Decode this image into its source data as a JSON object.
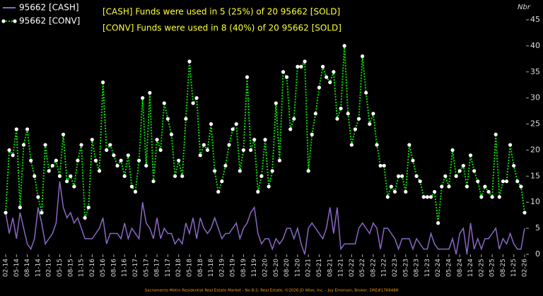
{
  "chart_data": {
    "type": "line",
    "ylabel": "Nbr",
    "annotations": [
      "[CASH] Funds were used in 5 (25%) of 20 95662 [SOLD]",
      "[CONV] Funds were used in 8 (40%) of 20 95662 [SOLD]"
    ],
    "footer": "Sacramento Metro Residential Real Estate Market - No B.S. Real Estate, ©2026 JD Wise, Inc. - Joy Emerson, Broker, DRE#1768488",
    "ylim": [
      0,
      45
    ],
    "yticks": [
      0,
      5,
      10,
      15,
      20,
      25,
      30,
      35,
      40,
      45
    ],
    "categories": [
      "02-14",
      null,
      null,
      "05-14",
      null,
      null,
      "08-14",
      null,
      null,
      "11-14",
      null,
      null,
      "02-15",
      null,
      null,
      "05-15",
      null,
      null,
      "08-15",
      null,
      null,
      "11-15",
      null,
      null,
      "02-16",
      null,
      null,
      "05-16",
      null,
      null,
      "08-16",
      null,
      null,
      "11-16",
      null,
      null,
      "02-17",
      null,
      null,
      "05-17",
      null,
      null,
      "08-17",
      null,
      null,
      "11-17",
      null,
      null,
      "02-18",
      null,
      null,
      "05-18",
      null,
      null,
      "08-18",
      null,
      null,
      "11-18",
      null,
      null,
      "02-19",
      null,
      null,
      "05-19",
      null,
      null,
      "08-19",
      null,
      null,
      "11-19",
      null,
      null,
      "02-20",
      null,
      null,
      "05-20",
      null,
      null,
      "08-20",
      null,
      null,
      "11-20",
      null,
      null,
      "02-21",
      null,
      null,
      "05-21",
      null,
      null,
      "08-21",
      null,
      null,
      "11-21",
      null,
      null,
      "02-22",
      null,
      null,
      "05-22",
      null,
      null,
      "08-22",
      null,
      null,
      "11-22",
      null,
      null,
      "02-23",
      null,
      null,
      "05-23",
      null,
      null,
      "08-23",
      null,
      null,
      "11-23",
      null,
      null,
      "02-24",
      null,
      null,
      "05-24",
      null,
      null,
      "08-24",
      null,
      null,
      "11-24",
      null,
      null,
      "02-25",
      null,
      null,
      "05-25",
      null,
      null,
      "08-25",
      null,
      null,
      "11-25",
      null,
      null,
      "02-26"
    ],
    "series": [
      {
        "name": "95662 [CASH]",
        "color": "#8a68c4",
        "line_style": "solid",
        "values": [
          8,
          4,
          7,
          3,
          8,
          5,
          2,
          1,
          3,
          9,
          6,
          2,
          3,
          4,
          6,
          14,
          9,
          7,
          8,
          6,
          7,
          5,
          3,
          3,
          3,
          4,
          5,
          7,
          2,
          4,
          4,
          4,
          3,
          6,
          3,
          5,
          4,
          3,
          10,
          6,
          5,
          3,
          7,
          3,
          5,
          4,
          4,
          2,
          3,
          2,
          6,
          4,
          7,
          3,
          7,
          5,
          4,
          5,
          7,
          5,
          3,
          4,
          4,
          5,
          6,
          3,
          5,
          6,
          8,
          9,
          4,
          2,
          3,
          3,
          1,
          3,
          2,
          3,
          5,
          5,
          3,
          5,
          2,
          0,
          5,
          6,
          5,
          4,
          3,
          5,
          9,
          4,
          9,
          1,
          2,
          2,
          2,
          2,
          5,
          6,
          5,
          4,
          6,
          5,
          1,
          5,
          5,
          4,
          3,
          1,
          3,
          3,
          3,
          1,
          3,
          2,
          1,
          1,
          4,
          2,
          1,
          1,
          1,
          1,
          3,
          0,
          4,
          5,
          0,
          6,
          1,
          3,
          1,
          3,
          3,
          4,
          5,
          1,
          3,
          2,
          4,
          2,
          1,
          1,
          5
        ]
      },
      {
        "name": "95662 [CONV]",
        "color": "#00dd00",
        "line_style": "dotted",
        "marker_color": "#ffffff",
        "values": [
          8,
          20,
          19,
          24,
          9,
          21,
          24,
          18,
          15,
          11,
          8,
          21,
          16,
          17,
          18,
          15,
          23,
          14,
          15,
          13,
          18,
          21,
          7,
          9,
          22,
          18,
          16,
          33,
          20,
          21,
          19,
          17,
          18,
          15,
          19,
          13,
          12,
          18,
          30,
          17,
          31,
          14,
          22,
          20,
          29,
          26,
          23,
          15,
          18,
          15,
          26,
          37,
          29,
          30,
          19,
          21,
          20,
          25,
          16,
          12,
          14,
          17,
          21,
          24,
          25,
          16,
          20,
          34,
          20,
          22,
          12,
          15,
          22,
          13,
          16,
          29,
          18,
          35,
          34,
          24,
          26,
          36,
          36,
          37,
          16,
          23,
          27,
          32,
          36,
          34,
          33,
          35,
          26,
          28,
          40,
          27,
          21,
          24,
          26,
          38,
          31,
          25,
          27,
          21,
          17,
          17,
          11,
          13,
          12,
          15,
          15,
          12,
          21,
          18,
          15,
          14,
          11,
          11,
          11,
          12,
          6,
          13,
          15,
          13,
          20,
          15,
          16,
          17,
          13,
          19,
          16,
          14,
          11,
          13,
          12,
          11,
          23,
          11,
          14,
          14,
          21,
          17,
          14,
          13,
          8
        ]
      }
    ]
  }
}
